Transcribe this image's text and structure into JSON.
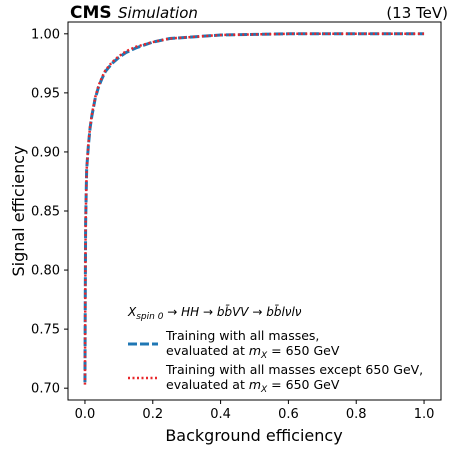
{
  "header": {
    "experiment": "CMS",
    "status": "Simulation",
    "energy": "(13 TeV)"
  },
  "chart_data": {
    "type": "line",
    "xlabel": "Background efficiency",
    "ylabel": "Signal efficiency",
    "xlim": [
      -0.05,
      1.05
    ],
    "ylim": [
      0.69,
      1.01
    ],
    "x_ticks": [
      "0.0",
      "0.2",
      "0.4",
      "0.6",
      "0.8",
      "1.0"
    ],
    "y_ticks": [
      "0.70",
      "0.75",
      "0.80",
      "0.85",
      "0.90",
      "0.95",
      "1.00"
    ],
    "x_tick_values": [
      0.0,
      0.2,
      0.4,
      0.6,
      0.8,
      1.0
    ],
    "y_tick_values": [
      0.7,
      0.75,
      0.8,
      0.85,
      0.9,
      0.95,
      1.0
    ],
    "grid": false,
    "legend_placement": "lower-center",
    "legend_title": "X_spin 0 → HH → bb̄VV → bb̄lνlν",
    "series": [
      {
        "name": "Training with all masses, evaluated at m_X = 650 GeV",
        "line1": "Training with all masses,",
        "line2": "evaluated at m_X = 650 GeV",
        "color": "#1f77b4",
        "style": "dashed",
        "x": [
          0.0,
          0.001,
          0.002,
          0.005,
          0.01,
          0.015,
          0.02,
          0.03,
          0.04,
          0.05,
          0.06,
          0.08,
          0.1,
          0.12,
          0.15,
          0.2,
          0.25,
          0.3,
          0.4,
          0.5,
          0.6,
          0.7,
          0.8,
          0.9,
          1.0
        ],
        "values": [
          0.705,
          0.78,
          0.84,
          0.885,
          0.905,
          0.92,
          0.93,
          0.945,
          0.955,
          0.962,
          0.968,
          0.975,
          0.98,
          0.984,
          0.988,
          0.993,
          0.996,
          0.997,
          0.999,
          0.9995,
          1.0,
          1.0,
          1.0,
          1.0,
          1.0
        ]
      },
      {
        "name": "Training with all masses except 650 GeV, evaluated at m_X = 650 GeV",
        "line1": "Training with all masses except 650 GeV,",
        "line2": "evaluated at m_X = 650 GeV",
        "color": "#e8262a",
        "style": "dotted",
        "x": [
          0.0,
          0.001,
          0.002,
          0.005,
          0.01,
          0.015,
          0.02,
          0.03,
          0.04,
          0.05,
          0.06,
          0.08,
          0.1,
          0.12,
          0.15,
          0.2,
          0.25,
          0.3,
          0.4,
          0.5,
          0.6,
          0.7,
          0.8,
          0.9,
          1.0
        ],
        "values": [
          0.703,
          0.78,
          0.84,
          0.885,
          0.906,
          0.921,
          0.931,
          0.946,
          0.956,
          0.963,
          0.969,
          0.976,
          0.981,
          0.985,
          0.989,
          0.993,
          0.996,
          0.997,
          0.999,
          0.9995,
          1.0,
          1.0,
          1.0,
          1.0,
          1.0
        ]
      }
    ]
  }
}
